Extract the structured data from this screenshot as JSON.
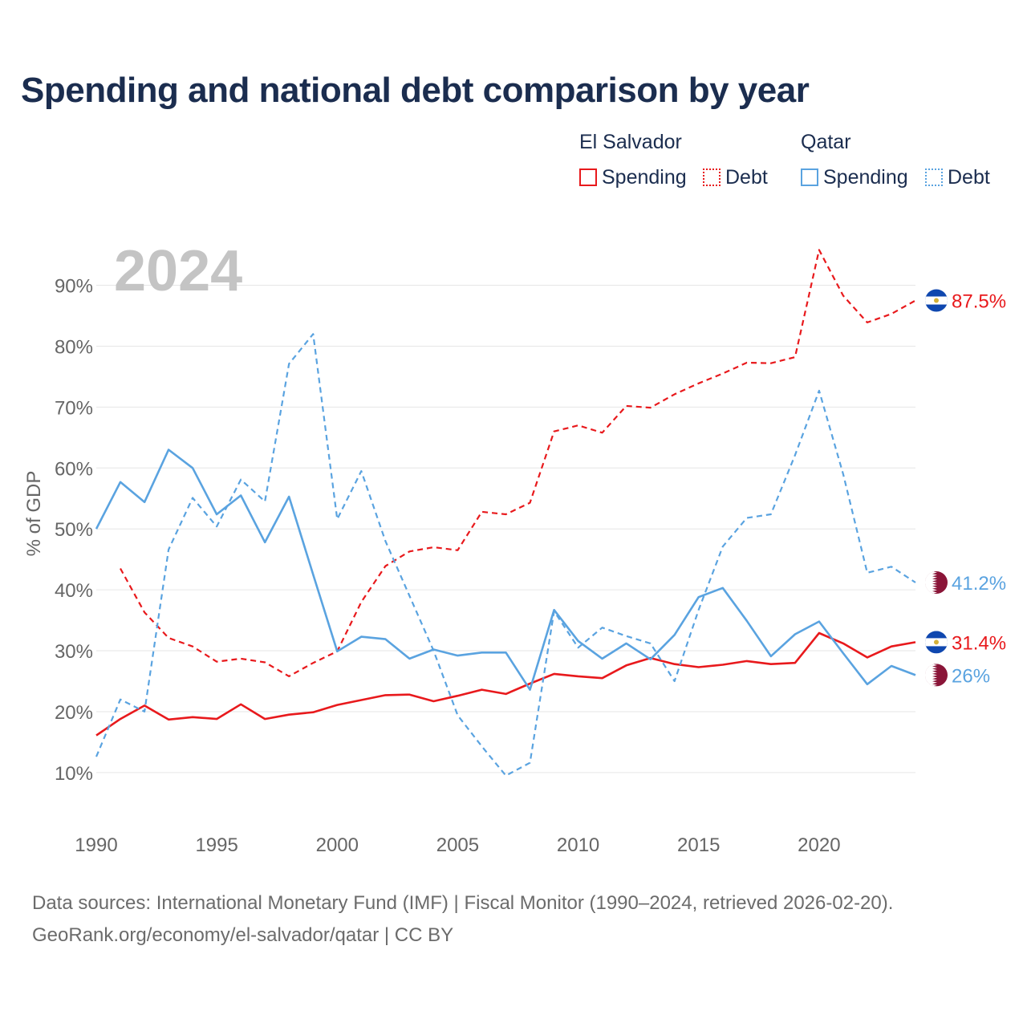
{
  "title": "Spending and national debt comparison by year",
  "legend": {
    "groups": [
      "El Salvador",
      "Qatar"
    ],
    "items": [
      {
        "label": "Spending",
        "country": "El Salvador",
        "style": "solid",
        "color": "#e8191c"
      },
      {
        "label": "Debt",
        "country": "El Salvador",
        "style": "dotted",
        "color": "#e8191c"
      },
      {
        "label": "Spending",
        "country": "Qatar",
        "style": "solid",
        "color": "#5aa3e0"
      },
      {
        "label": "Debt",
        "country": "Qatar",
        "style": "dotted",
        "color": "#5aa3e0"
      }
    ]
  },
  "year_watermark": "2024",
  "footer": {
    "line1": "Data sources: International Monetary Fund (IMF) | Fiscal Monitor (1990–2024, retrieved 2026-02-20).",
    "line2": "GeoRank.org/economy/el-salvador/qatar | CC BY"
  },
  "colors": {
    "el_salvador": "#e8191c",
    "qatar": "#5aa3e0",
    "title": "#1b2d4f",
    "axis_text": "#666666",
    "grid": "#e6e6e6",
    "watermark": "#c4c4c4"
  },
  "chart_data": {
    "type": "line",
    "title": "Spending and national debt comparison by year",
    "xlabel": "",
    "ylabel": "% of GDP",
    "xlim": [
      1990,
      2024
    ],
    "ylim": [
      3,
      96
    ],
    "x_ticks": [
      1990,
      1995,
      2000,
      2005,
      2010,
      2015,
      2020
    ],
    "y_ticks": [
      10,
      20,
      30,
      40,
      50,
      60,
      70,
      80,
      90
    ],
    "y_tick_labels": [
      "10%",
      "20%",
      "30%",
      "40%",
      "50%",
      "60%",
      "70%",
      "80%",
      "90%"
    ],
    "grid": true,
    "series": [
      {
        "name": "El Salvador Spending",
        "country": "El Salvador",
        "metric": "Spending",
        "style": "solid",
        "color": "#e8191c",
        "end_label": "31.4%",
        "x": [
          1990,
          1991,
          1992,
          1993,
          1994,
          1995,
          1996,
          1997,
          1998,
          1999,
          2000,
          2001,
          2002,
          2003,
          2004,
          2005,
          2006,
          2007,
          2008,
          2009,
          2010,
          2011,
          2012,
          2013,
          2014,
          2015,
          2016,
          2017,
          2018,
          2019,
          2020,
          2021,
          2022,
          2023,
          2024
        ],
        "values": [
          16.1,
          18.8,
          21.0,
          18.7,
          19.1,
          18.8,
          21.2,
          18.8,
          19.5,
          19.9,
          21.1,
          21.9,
          22.7,
          22.8,
          21.7,
          22.6,
          23.6,
          22.9,
          24.6,
          26.2,
          25.8,
          25.5,
          27.6,
          28.8,
          27.8,
          27.3,
          27.7,
          28.3,
          27.8,
          28.0,
          32.9,
          31.2,
          28.9,
          30.7,
          31.4
        ]
      },
      {
        "name": "El Salvador Debt",
        "country": "El Salvador",
        "metric": "Debt",
        "style": "dashed",
        "color": "#e8191c",
        "end_label": "87.5%",
        "x": [
          1991,
          1992,
          1993,
          1994,
          1995,
          1996,
          1997,
          1998,
          1999,
          2000,
          2001,
          2002,
          2003,
          2004,
          2005,
          2006,
          2007,
          2008,
          2009,
          2010,
          2011,
          2012,
          2013,
          2014,
          2015,
          2016,
          2017,
          2018,
          2019,
          2020,
          2021,
          2022,
          2023,
          2024
        ],
        "values": [
          43.5,
          36.3,
          32.1,
          30.7,
          28.2,
          28.7,
          28.1,
          25.8,
          28.0,
          29.9,
          38.0,
          43.9,
          46.3,
          47.0,
          46.5,
          52.8,
          52.4,
          54.3,
          66.0,
          67.0,
          65.8,
          70.2,
          69.9,
          72.1,
          73.9,
          75.5,
          77.3,
          77.2,
          78.2,
          95.8,
          88.3,
          83.9,
          85.3,
          87.5
        ]
      },
      {
        "name": "Qatar Spending",
        "country": "Qatar",
        "metric": "Spending",
        "style": "solid",
        "color": "#5aa3e0",
        "end_label": "26%",
        "x": [
          1990,
          1991,
          1992,
          1993,
          1994,
          1995,
          1996,
          1997,
          1998,
          1999,
          2000,
          2001,
          2002,
          2003,
          2004,
          2005,
          2006,
          2007,
          2008,
          2009,
          2010,
          2011,
          2012,
          2013,
          2014,
          2015,
          2016,
          2017,
          2018,
          2019,
          2020,
          2021,
          2022,
          2023,
          2024
        ],
        "values": [
          50.0,
          57.7,
          54.4,
          63.0,
          60.0,
          52.4,
          55.5,
          47.8,
          55.3,
          42.5,
          29.9,
          32.3,
          31.9,
          28.7,
          30.2,
          29.2,
          29.7,
          29.7,
          23.6,
          36.7,
          31.6,
          28.7,
          31.2,
          28.6,
          32.6,
          38.8,
          40.3,
          34.9,
          29.1,
          32.7,
          34.8,
          29.6,
          24.5,
          27.5,
          26.0
        ]
      },
      {
        "name": "Qatar Debt",
        "country": "Qatar",
        "metric": "Debt",
        "style": "dashed",
        "color": "#5aa3e0",
        "end_label": "41.2%",
        "x": [
          1990,
          1991,
          1992,
          1993,
          1994,
          1995,
          1996,
          1997,
          1998,
          1999,
          2000,
          2001,
          2002,
          2003,
          2004,
          2005,
          2006,
          2007,
          2008,
          2009,
          2010,
          2011,
          2012,
          2013,
          2014,
          2015,
          2016,
          2017,
          2018,
          2019,
          2020,
          2021,
          2022,
          2023,
          2024
        ],
        "values": [
          12.6,
          22.0,
          20.0,
          46.6,
          55.1,
          50.4,
          58.1,
          54.5,
          77.1,
          82.0,
          51.6,
          59.5,
          48.0,
          39.0,
          30.0,
          19.4,
          14.3,
          9.5,
          11.6,
          36.5,
          30.5,
          33.8,
          32.4,
          31.2,
          25.0,
          36.7,
          47.1,
          51.8,
          52.4,
          62.1,
          72.7,
          59.0,
          42.8,
          43.8,
          41.2
        ]
      }
    ]
  }
}
